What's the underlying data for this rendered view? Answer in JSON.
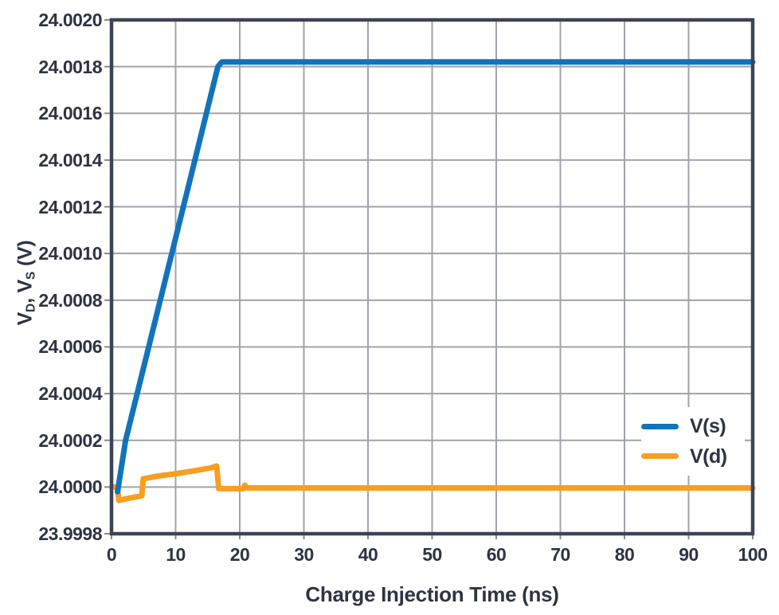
{
  "colors": {
    "text": "#2D3443",
    "grid": "#9FA3AA",
    "tick": "#878C95",
    "border": "#3D4455",
    "background": "#FFFFFF",
    "series_blue": "#1173BC",
    "series_orange": "#F89E20"
  },
  "axes": {
    "y_title_parts": [
      "V",
      "D",
      ", V",
      "S",
      " (V)"
    ]
  },
  "chart_data": {
    "type": "line",
    "title": "",
    "xlabel": "Charge Injection Time (ns)",
    "ylabel": "VD, VS (V)",
    "xlim": [
      0,
      100
    ],
    "ylim": [
      23.9998,
      24.002
    ],
    "x_tick_labels": [
      "0",
      "10",
      "20",
      "30",
      "40",
      "50",
      "60",
      "70",
      "80",
      "90",
      "100"
    ],
    "y_tick_labels": [
      "23.9998",
      "24.0000",
      "24.0002",
      "24.0004",
      "24.0006",
      "24.0008",
      "24.0010",
      "24.0012",
      "24.0014",
      "24.0016",
      "24.0018",
      "24.0020"
    ],
    "grid": true,
    "legend_position": "lower right",
    "series": [
      {
        "name": "V(d)",
        "color": "#F89E20",
        "points": [
          [
            0,
            24.0
          ],
          [
            0.9,
            24.0
          ],
          [
            1.15,
            23.999942
          ],
          [
            2.5,
            23.999951
          ],
          [
            4.5,
            23.999961
          ],
          [
            4.72,
            23.999963
          ],
          [
            4.95,
            24.000035
          ],
          [
            7,
            24.000046
          ],
          [
            10,
            24.000057
          ],
          [
            13,
            24.00007
          ],
          [
            15.5,
            24.000082
          ],
          [
            16.4,
            24.00009
          ],
          [
            16.72,
            23.999993
          ],
          [
            20.6,
            23.999993
          ],
          [
            20.78,
            24.000008
          ],
          [
            21.15,
            23.999996
          ],
          [
            100,
            23.999996
          ]
        ]
      },
      {
        "name": "V(s)",
        "color": "#1173BC",
        "points": [
          [
            0.95,
            23.99998
          ],
          [
            2.2,
            24.0002
          ],
          [
            4.0,
            24.0004
          ],
          [
            5.8,
            24.0006
          ],
          [
            7.6,
            24.0008
          ],
          [
            9.4,
            24.001
          ],
          [
            11.2,
            24.0012
          ],
          [
            13.0,
            24.0014
          ],
          [
            14.8,
            24.0016
          ],
          [
            16.6,
            24.0018
          ],
          [
            17.2,
            24.00182
          ],
          [
            100,
            24.00182
          ]
        ]
      }
    ],
    "legend_order": [
      1,
      0
    ]
  }
}
